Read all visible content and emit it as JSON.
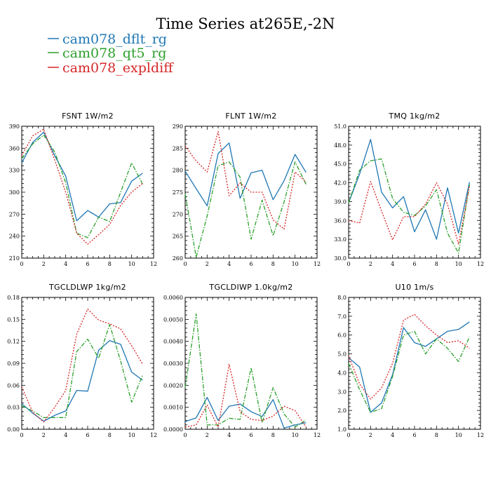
{
  "figure": {
    "title": "Time Series at265E,-2N",
    "legend": [
      {
        "name": "cam078_dflt_rg",
        "color": "#1f77b4",
        "dash": "solid"
      },
      {
        "name": "cam078_qt5_rg",
        "color": "#2ca02c",
        "dash": "dashed"
      },
      {
        "name": "cam078_expldiff",
        "color": "#d62728",
        "dash": "dotted"
      }
    ]
  },
  "chart_data": [
    {
      "type": "line",
      "title": "FSNT   1W/m2",
      "x": [
        0,
        1,
        2,
        3,
        4,
        5,
        6,
        7,
        8,
        9,
        10,
        11
      ],
      "xlim": [
        0,
        12
      ],
      "xticks": [
        0,
        2,
        4,
        6,
        8,
        10,
        12
      ],
      "ylim": [
        210,
        390
      ],
      "yticks": [
        210,
        240,
        270,
        300,
        330,
        360,
        390
      ],
      "ytick_labels": [
        "210",
        "240",
        "270",
        "300",
        "330",
        "360",
        "390"
      ],
      "series": [
        {
          "name": "cam078_dflt_rg",
          "values": [
            340,
            368,
            382,
            350,
            322,
            261,
            275,
            266,
            284,
            286,
            315,
            326
          ]
        },
        {
          "name": "cam078_qt5_rg",
          "values": [
            346,
            366,
            378,
            355,
            313,
            244,
            238,
            266,
            260,
            300,
            340,
            311
          ]
        },
        {
          "name": "cam078_expldiff",
          "values": [
            350,
            377,
            386,
            344,
            300,
            244,
            229,
            242,
            256,
            282,
            300,
            312
          ]
        }
      ]
    },
    {
      "type": "line",
      "title": "FLNT   1W/m2",
      "x": [
        0,
        1,
        2,
        3,
        4,
        5,
        6,
        7,
        8,
        9,
        10,
        11
      ],
      "xlim": [
        0,
        12
      ],
      "xticks": [
        0,
        2,
        4,
        6,
        8,
        10,
        12
      ],
      "ylim": [
        260,
        290
      ],
      "yticks": [
        260,
        265,
        270,
        275,
        280,
        285,
        290
      ],
      "ytick_labels": [
        "260",
        "265",
        "270",
        "275",
        "280",
        "285",
        "290"
      ],
      "series": [
        {
          "name": "cam078_dflt_rg",
          "values": [
            279.8,
            275.8,
            271.9,
            283.8,
            286.2,
            273.6,
            279.4,
            280.0,
            273.3,
            277.6,
            283.6,
            279.5
          ]
        },
        {
          "name": "cam078_qt5_rg",
          "values": [
            274.6,
            260.2,
            269.6,
            281.0,
            281.9,
            278.4,
            264.3,
            273.2,
            265.1,
            272.8,
            281.9,
            276.8
          ]
        },
        {
          "name": "cam078_expldiff",
          "values": [
            285.5,
            282.1,
            279.6,
            288.8,
            274.2,
            277.1,
            275.0,
            275.0,
            268.7,
            266.6,
            279.6,
            277.3
          ]
        }
      ]
    },
    {
      "type": "line",
      "title": "TMQ   1kg/m2",
      "x": [
        0,
        1,
        2,
        3,
        4,
        5,
        6,
        7,
        8,
        9,
        10,
        11
      ],
      "xlim": [
        0,
        12
      ],
      "xticks": [
        0,
        2,
        4,
        6,
        8,
        10,
        12
      ],
      "ylim": [
        30,
        51
      ],
      "yticks": [
        30,
        33,
        36,
        39,
        42,
        45,
        48,
        51
      ],
      "ytick_labels": [
        "30.0",
        "33.0",
        "36.0",
        "39.0",
        "42.0",
        "45.0",
        "48.0",
        "51.0"
      ],
      "series": [
        {
          "name": "cam078_dflt_rg",
          "values": [
            38.8,
            43.4,
            48.9,
            40.5,
            38.0,
            39.8,
            34.2,
            37.7,
            33.0,
            41.2,
            34.0,
            42.1
          ]
        },
        {
          "name": "cam078_qt5_rg",
          "values": [
            38.8,
            44.0,
            45.5,
            45.8,
            39.5,
            37.3,
            36.8,
            38.3,
            40.9,
            34.0,
            30.8,
            41.7
          ]
        },
        {
          "name": "cam078_expldiff",
          "values": [
            36.0,
            35.6,
            42.2,
            37.5,
            32.9,
            36.6,
            36.6,
            38.6,
            42.0,
            38.6,
            32.2,
            41.5
          ]
        }
      ]
    },
    {
      "type": "line",
      "title": "TGCLDLWP   1kg/m2",
      "x": [
        0,
        1,
        2,
        3,
        4,
        5,
        6,
        7,
        8,
        9,
        10,
        11
      ],
      "xlim": [
        0,
        12
      ],
      "xticks": [
        0,
        2,
        4,
        6,
        8,
        10,
        12
      ],
      "ylim": [
        0,
        0.18
      ],
      "yticks": [
        0,
        0.03,
        0.06,
        0.09,
        0.12,
        0.15,
        0.18
      ],
      "ytick_labels": [
        "0.00",
        "0.03",
        "0.06",
        "0.09",
        "0.12",
        "0.15",
        "0.18"
      ],
      "series": [
        {
          "name": "cam078_dflt_rg",
          "values": [
            0.035,
            0.022,
            0.011,
            0.019,
            0.025,
            0.053,
            0.052,
            0.108,
            0.121,
            0.116,
            0.078,
            0.067
          ]
        },
        {
          "name": "cam078_qt5_rg",
          "values": [
            0.032,
            0.025,
            0.016,
            0.016,
            0.016,
            0.106,
            0.123,
            0.097,
            0.143,
            0.093,
            0.037,
            0.074
          ]
        },
        {
          "name": "cam078_expldiff",
          "values": [
            0.058,
            0.023,
            0.01,
            0.03,
            0.053,
            0.13,
            0.164,
            0.149,
            0.144,
            0.137,
            0.114,
            0.089
          ]
        }
      ]
    },
    {
      "type": "line",
      "title": "TGCLDIWP   1.0kg/m2",
      "x": [
        0,
        1,
        2,
        3,
        4,
        5,
        6,
        7,
        8,
        9,
        10,
        11
      ],
      "xlim": [
        0,
        12
      ],
      "xticks": [
        0,
        2,
        4,
        6,
        8,
        10,
        12
      ],
      "ylim": [
        0,
        0.006
      ],
      "yticks": [
        0,
        0.001,
        0.002,
        0.003,
        0.004,
        0.005,
        0.006
      ],
      "ytick_labels": [
        "0.0000",
        "0.0010",
        "0.0020",
        "0.0030",
        "0.0040",
        "0.0050",
        "0.0060"
      ],
      "series": [
        {
          "name": "cam078_dflt_rg",
          "values": [
            0.00035,
            0.00052,
            0.00145,
            0.0004,
            0.00105,
            0.00115,
            0.0008,
            0.00058,
            0.00135,
            5e-05,
            0.0002,
            0.0003
          ]
        },
        {
          "name": "cam078_qt5_rg",
          "values": [
            0.0019,
            0.00525,
            0.0002,
            0.0002,
            0.0005,
            0.00045,
            0.0028,
            0.0003,
            0.0019,
            0.0007,
            0.0001,
            0.00042
          ]
        },
        {
          "name": "cam078_expldiff",
          "values": [
            0.0001,
            0.0002,
            0.0011,
            0.0001,
            0.00295,
            0.0008,
            0.00045,
            0.0004,
            0.0006,
            0.00105,
            0.00085,
            0.0001
          ]
        }
      ]
    },
    {
      "type": "line",
      "title": "U10   1m/s",
      "x": [
        0,
        1,
        2,
        3,
        4,
        5,
        6,
        7,
        8,
        9,
        10,
        11
      ],
      "xlim": [
        0,
        12
      ],
      "xticks": [
        0,
        2,
        4,
        6,
        8,
        10,
        12
      ],
      "ylim": [
        1,
        8
      ],
      "yticks": [
        1,
        2,
        3,
        4,
        5,
        6,
        7,
        8
      ],
      "ytick_labels": [
        "1.0",
        "2.0",
        "3.0",
        "4.0",
        "5.0",
        "6.0",
        "7.0",
        "8.0"
      ],
      "series": [
        {
          "name": "cam078_dflt_rg",
          "values": [
            4.8,
            4.3,
            1.9,
            2.4,
            3.9,
            6.4,
            5.6,
            5.4,
            5.8,
            6.2,
            6.3,
            6.7
          ]
        },
        {
          "name": "cam078_qt5_rg",
          "values": [
            4.5,
            3.1,
            1.9,
            2.1,
            3.8,
            6.0,
            6.2,
            5.0,
            5.8,
            5.3,
            4.6,
            5.9
          ]
        },
        {
          "name": "cam078_expldiff",
          "values": [
            4.9,
            3.4,
            2.6,
            3.2,
            4.5,
            6.8,
            7.1,
            6.5,
            6.0,
            5.6,
            5.7,
            5.3
          ]
        }
      ]
    }
  ]
}
